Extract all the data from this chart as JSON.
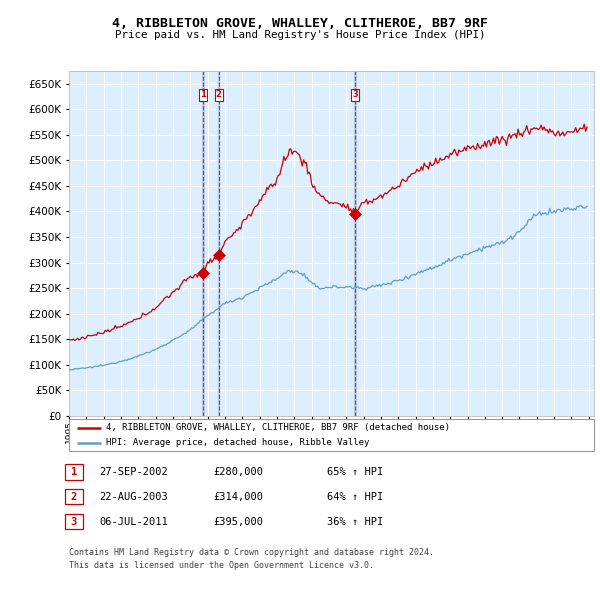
{
  "title": "4, RIBBLETON GROVE, WHALLEY, CLITHEROE, BB7 9RF",
  "subtitle": "Price paid vs. HM Land Registry's House Price Index (HPI)",
  "ylim": [
    0,
    675000
  ],
  "yticks": [
    0,
    50000,
    100000,
    150000,
    200000,
    250000,
    300000,
    350000,
    400000,
    450000,
    500000,
    550000,
    600000,
    650000
  ],
  "hpi_color": "#6699cc",
  "price_color": "#cc0000",
  "vline_color": "#cc0000",
  "bg_color": "#ddeeff",
  "grid_color": "#ffffff",
  "sales": [
    {
      "date_num": 2002.74,
      "price": 280000,
      "label": "1"
    },
    {
      "date_num": 2003.64,
      "price": 314000,
      "label": "2"
    },
    {
      "date_num": 2011.51,
      "price": 395000,
      "label": "3"
    }
  ],
  "legend_entries": [
    "4, RIBBLETON GROVE, WHALLEY, CLITHEROE, BB7 9RF (detached house)",
    "HPI: Average price, detached house, Ribble Valley"
  ],
  "table_rows": [
    {
      "num": "1",
      "date": "27-SEP-2002",
      "price": "£280,000",
      "hpi": "65% ↑ HPI"
    },
    {
      "num": "2",
      "date": "22-AUG-2003",
      "price": "£314,000",
      "hpi": "64% ↑ HPI"
    },
    {
      "num": "3",
      "date": "06-JUL-2011",
      "price": "£395,000",
      "hpi": "36% ↑ HPI"
    }
  ],
  "footnote1": "Contains HM Land Registry data © Crown copyright and database right 2024.",
  "footnote2": "This data is licensed under the Open Government Licence v3.0."
}
